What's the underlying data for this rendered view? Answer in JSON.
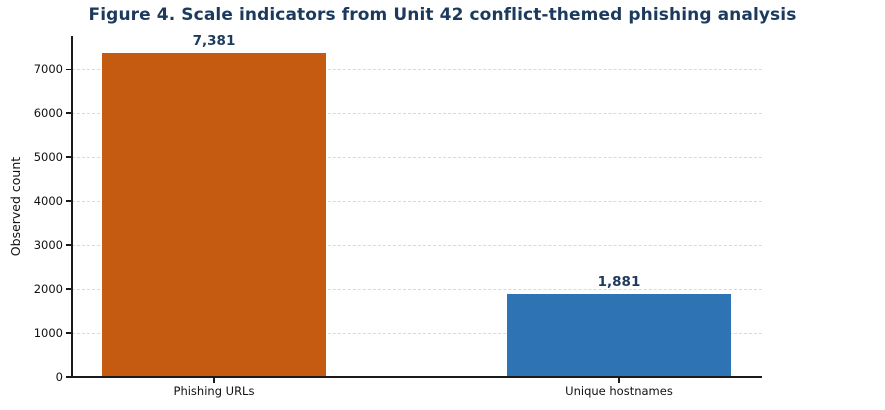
{
  "title": "Figure 4. Scale indicators from Unit 42 conflict-themed phishing analysis",
  "chart_data": {
    "type": "bar",
    "title": "Figure 4. Scale indicators from Unit 42 conflict-themed phishing analysis",
    "categories": [
      "Phishing URLs",
      "Unique hostnames"
    ],
    "values": [
      7381,
      1881
    ],
    "value_labels": [
      "7,381",
      "1,881"
    ],
    "bar_colors": [
      "#c55a11",
      "#2e74b5"
    ],
    "xlabel": "",
    "ylabel": "Observed count",
    "ylim": [
      0,
      7758
    ],
    "yticks": [
      0,
      1000,
      2000,
      3000,
      4000,
      5000,
      6000,
      7000
    ],
    "grid": "horizontal-dashed",
    "legend_position": "none"
  },
  "colors": {
    "background": "#ffffff",
    "title_text": "#1c3a5e",
    "value_label_text": "#1d3a5f",
    "axis_line": "#1a1a1a",
    "tick_text": "#111111",
    "gridline": "#d9d9d9",
    "bar_phishing_urls": "#c55a11",
    "bar_unique_hostnames": "#2e74b5"
  }
}
